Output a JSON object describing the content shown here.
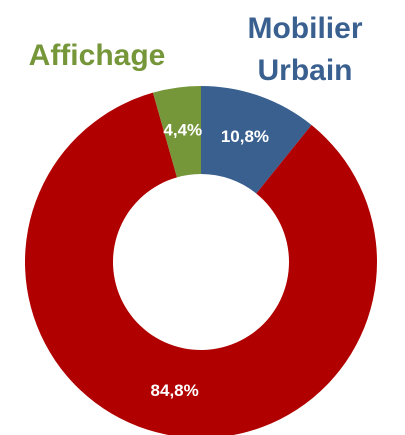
{
  "chart_data": {
    "type": "donut",
    "categories": [
      "Mobilier Urbain",
      null,
      "Affichage"
    ],
    "values": [
      10.8,
      84.8,
      4.4
    ],
    "value_labels": [
      "10,8%",
      "84,8%",
      "4,4%"
    ],
    "colors": [
      "#3a6090",
      "#b00000",
      "#76963a"
    ]
  }
}
